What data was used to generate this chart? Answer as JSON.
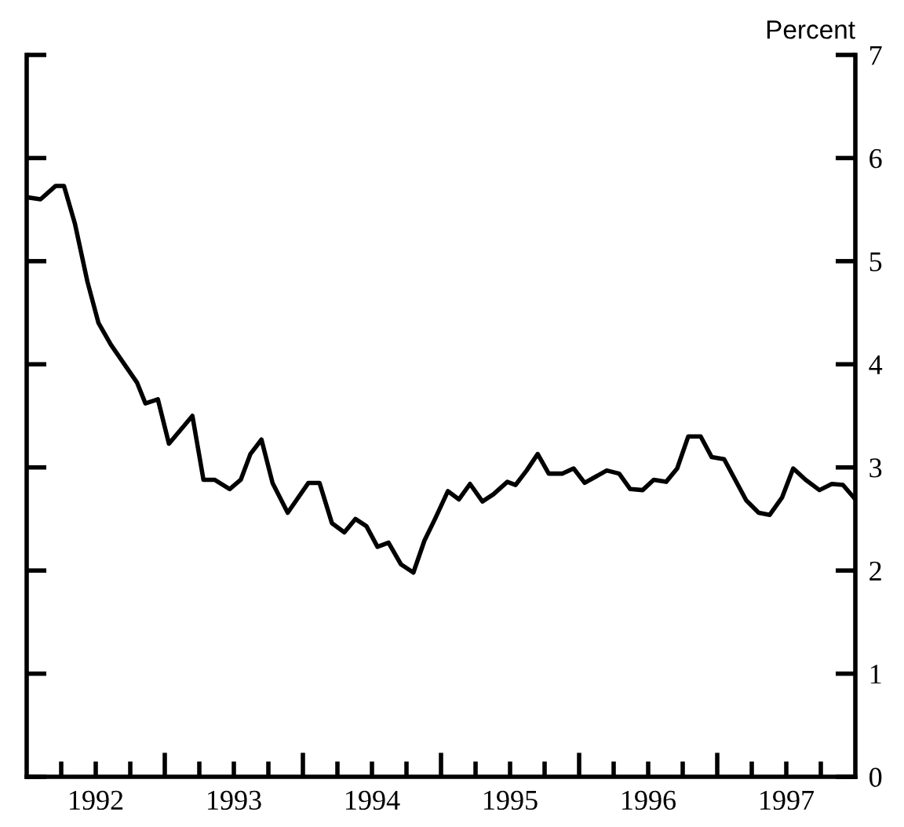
{
  "chart_data": {
    "type": "line",
    "ylabel": "Percent",
    "color": "#000000",
    "line_style": "solid",
    "marker": "none",
    "grid": false,
    "legend": false,
    "x": [
      1992.0,
      1992.1,
      1992.21,
      1992.27,
      1992.35,
      1992.44,
      1992.52,
      1992.61,
      1992.8,
      1992.86,
      1992.95,
      1993.03,
      1993.2,
      1993.28,
      1993.36,
      1993.47,
      1993.55,
      1993.62,
      1993.7,
      1993.78,
      1993.89,
      1994.04,
      1994.12,
      1994.21,
      1994.3,
      1994.38,
      1994.46,
      1994.54,
      1994.62,
      1994.71,
      1994.8,
      1994.88,
      1994.96,
      1995.05,
      1995.13,
      1995.21,
      1995.3,
      1995.38,
      1995.48,
      1995.54,
      1995.62,
      1995.7,
      1995.78,
      1995.88,
      1995.96,
      1996.04,
      1996.12,
      1996.2,
      1996.29,
      1996.37,
      1996.46,
      1996.54,
      1996.63,
      1996.71,
      1996.79,
      1996.88,
      1996.96,
      1997.05,
      1997.13,
      1997.21,
      1997.3,
      1997.38,
      1997.47,
      1997.55,
      1997.64,
      1997.74,
      1997.83,
      1997.91,
      1998.0
    ],
    "values": [
      5.62,
      5.6,
      5.73,
      5.73,
      5.36,
      4.8,
      4.4,
      4.19,
      3.82,
      3.62,
      3.66,
      3.23,
      3.5,
      2.88,
      2.88,
      2.79,
      2.88,
      3.13,
      3.27,
      2.85,
      2.56,
      2.85,
      2.85,
      2.46,
      2.37,
      2.5,
      2.43,
      2.23,
      2.27,
      2.06,
      1.98,
      2.29,
      2.51,
      2.77,
      2.69,
      2.84,
      2.67,
      2.74,
      2.86,
      2.83,
      2.97,
      3.13,
      2.94,
      2.94,
      2.99,
      2.85,
      2.91,
      2.97,
      2.94,
      2.79,
      2.78,
      2.88,
      2.86,
      2.99,
      3.3,
      3.3,
      3.1,
      3.08,
      2.88,
      2.68,
      2.56,
      2.54,
      2.71,
      2.99,
      2.88,
      2.78,
      2.84,
      2.83,
      2.69
    ],
    "xlim": [
      1992,
      1998
    ],
    "ylim": [
      0,
      7
    ],
    "yticks": [
      0,
      1,
      2,
      3,
      4,
      5,
      6,
      7
    ],
    "xticks": [
      {
        "value": 1992.25,
        "label": null
      },
      {
        "value": 1992.5,
        "label": "1992"
      },
      {
        "value": 1992.75,
        "label": null
      },
      {
        "value": 1993,
        "label": null
      },
      {
        "value": 1993.25,
        "label": null
      },
      {
        "value": 1993.5,
        "label": "1993"
      },
      {
        "value": 1993.75,
        "label": null
      },
      {
        "value": 1994,
        "label": null
      },
      {
        "value": 1994.25,
        "label": null
      },
      {
        "value": 1994.5,
        "label": "1994"
      },
      {
        "value": 1994.75,
        "label": null
      },
      {
        "value": 1995,
        "label": null
      },
      {
        "value": 1995.25,
        "label": null
      },
      {
        "value": 1995.5,
        "label": "1995"
      },
      {
        "value": 1995.75,
        "label": null
      },
      {
        "value": 1996,
        "label": null
      },
      {
        "value": 1996.25,
        "label": null
      },
      {
        "value": 1996.5,
        "label": "1996"
      },
      {
        "value": 1996.75,
        "label": null
      },
      {
        "value": 1997,
        "label": null
      },
      {
        "value": 1997.25,
        "label": null
      },
      {
        "value": 1997.5,
        "label": "1997"
      },
      {
        "value": 1997.75,
        "label": null
      }
    ]
  }
}
